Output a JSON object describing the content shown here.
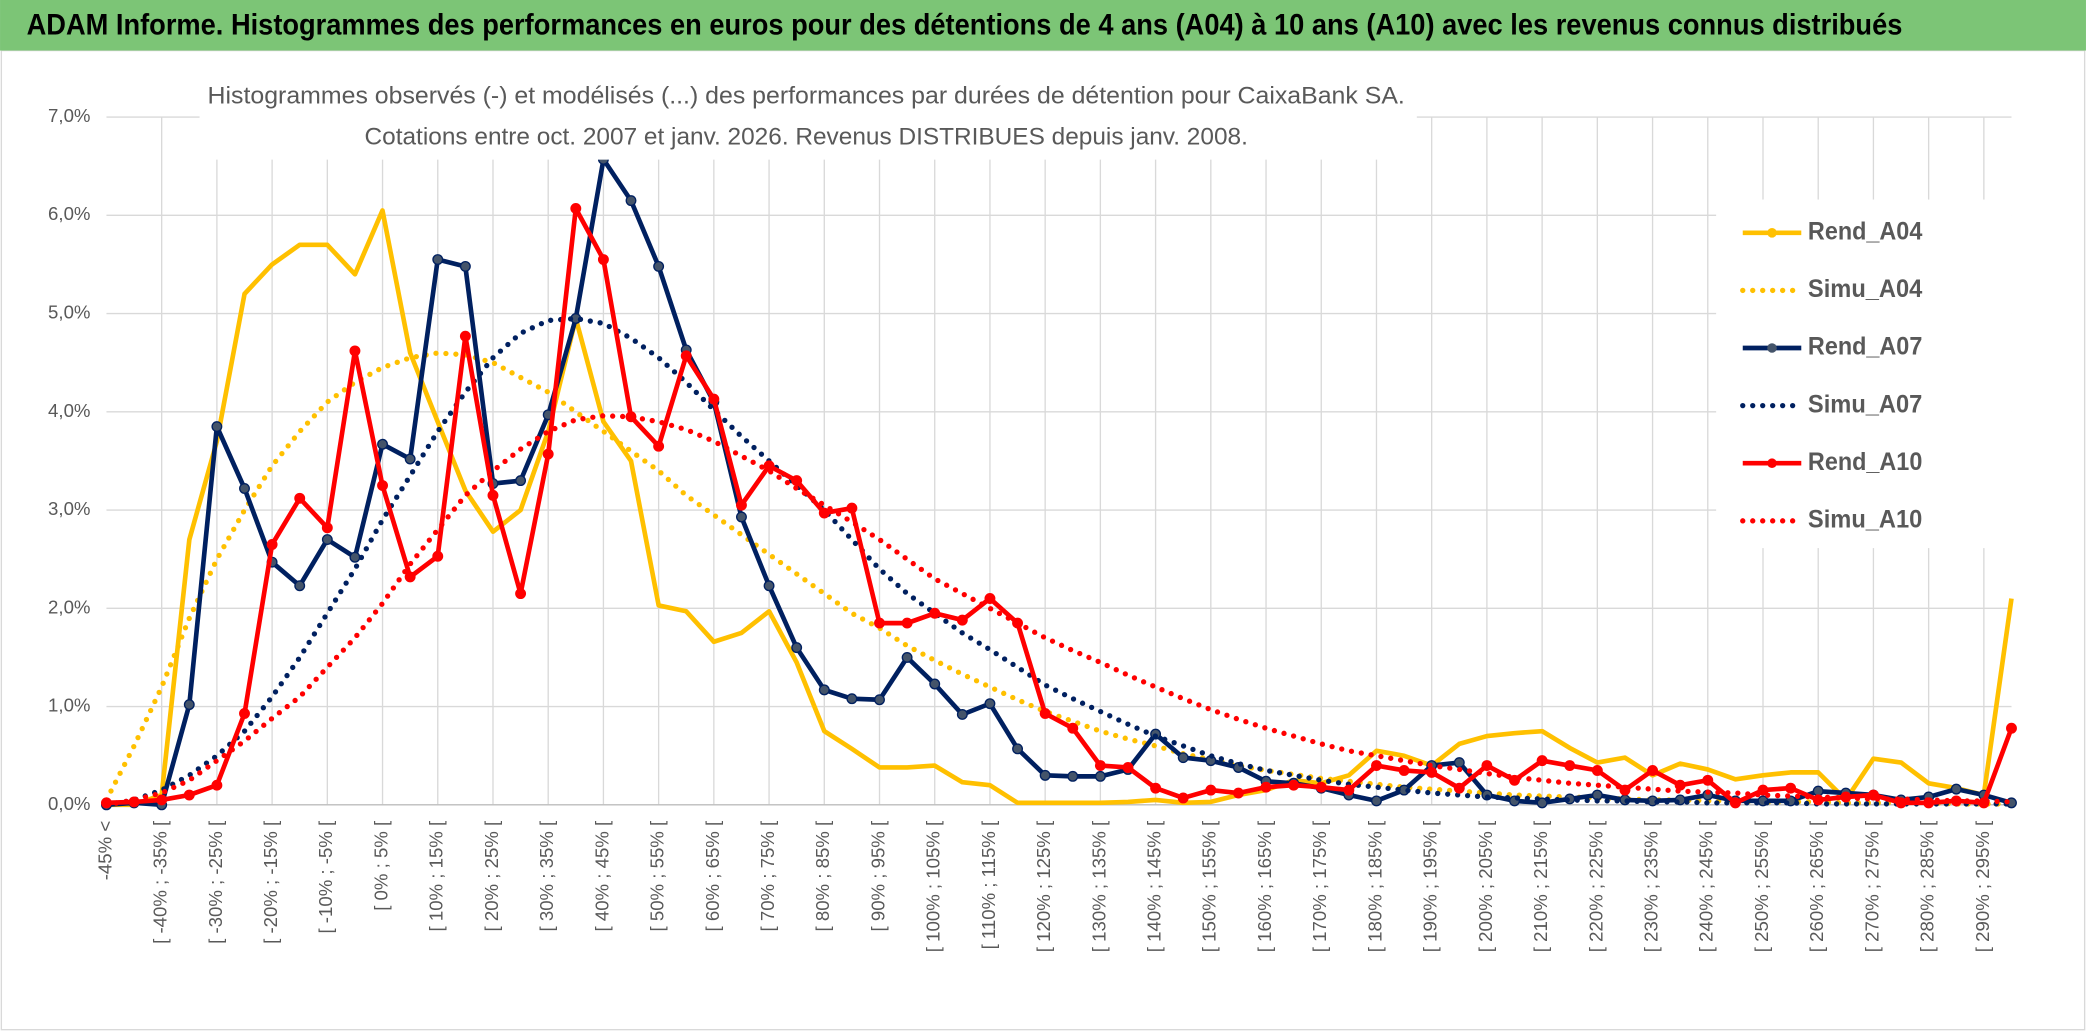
{
  "chart_data": {
    "type": "line",
    "title": "ADAM Informe. Histogrammes des performances en euros pour des détentions de 4 ans (A04) à 10 ans (A10) avec les revenus connus distribués",
    "subtitle": [
      "Histogrammes observés (-) et modélisés (...) des performances par durées de détention pour CaixaBank SA.",
      "Cotations entre oct. 2007 et janv. 2026. Revenus DISTRIBUES depuis janv. 2008."
    ],
    "categories": [
      "-45% <",
      null,
      "[ -40% ; -35% [",
      null,
      "[ -30% ; -25% [",
      null,
      "[ -20% ; -15% [",
      null,
      "[ -10% ; -5% [",
      null,
      "[ 0% ; 5% [",
      null,
      "[ 10% ; 15% [",
      null,
      "[ 20% ; 25% [",
      null,
      "[ 30% ; 35% [",
      null,
      "[ 40% ; 45% [",
      null,
      "[ 50% ; 55% [",
      null,
      "[ 60% ; 65% [",
      null,
      "[ 70% ; 75% [",
      null,
      "[ 80% ; 85% [",
      null,
      "[ 90% ; 95% [",
      null,
      "[ 100% ; 105% [",
      null,
      "[ 110% ; 115% [",
      null,
      "[ 120% ; 125% [",
      null,
      "[ 130% ; 135% [",
      null,
      "[ 140% ; 145% [",
      null,
      "[ 150% ; 155% [",
      null,
      "[ 160% ; 165% [",
      null,
      "[ 170% ; 175% [",
      null,
      "[ 180% ; 185% [",
      null,
      "[ 190% ; 195% [",
      null,
      "[ 200% ; 205% [",
      null,
      "[ 210% ; 215% [",
      null,
      "[ 220% ; 225% [",
      null,
      "[ 230% ; 235% [",
      null,
      "[ 240% ; 245% [",
      null,
      "[ 250% ; 255% [",
      null,
      "[ 260% ; 265% [",
      null,
      "[ 270% ; 275% [",
      null,
      "[ 280% ; 285% [",
      null,
      "[ 290% ; 295% [",
      null
    ],
    "series": [
      {
        "name": "Rend_A04",
        "color": "#ffc000",
        "style": "solid",
        "markers": false,
        "values": [
          0,
          0,
          0.1,
          2.7,
          3.7,
          5.2,
          5.5,
          5.7,
          5.7,
          5.4,
          6.05,
          4.6,
          3.9,
          3.2,
          2.78,
          3.0,
          3.8,
          4.95,
          3.9,
          3.5,
          2.03,
          1.97,
          1.66,
          1.75,
          1.97,
          1.45,
          0.75,
          0.57,
          0.38,
          0.38,
          0.4,
          0.23,
          0.2,
          0.02,
          0.02,
          0.02,
          0.02,
          0.03,
          0.05,
          0.02,
          0.03,
          0.1,
          0.15,
          0.25,
          0.22,
          0.3,
          0.55,
          0.5,
          0.4,
          0.62,
          0.7,
          0.73,
          0.75,
          0.58,
          0.43,
          0.48,
          0.3,
          0.42,
          0.36,
          0.26,
          0.3,
          0.33,
          0.33,
          0.05,
          0.47,
          0.43,
          0.22,
          0.17,
          0.1,
          2.1
        ]
      },
      {
        "name": "Simu_A04",
        "color": "#ffc000",
        "style": "dotted",
        "markers": false,
        "values": [
          0.05,
          0.6,
          1.2,
          1.9,
          2.5,
          3.0,
          3.45,
          3.8,
          4.1,
          4.3,
          4.45,
          4.55,
          4.6,
          4.58,
          4.5,
          4.35,
          4.2,
          4.0,
          3.8,
          3.6,
          3.4,
          3.15,
          2.95,
          2.75,
          2.55,
          2.35,
          2.15,
          1.95,
          1.8,
          1.62,
          1.47,
          1.33,
          1.2,
          1.07,
          0.95,
          0.85,
          0.75,
          0.67,
          0.6,
          0.52,
          0.46,
          0.4,
          0.35,
          0.31,
          0.27,
          0.24,
          0.21,
          0.18,
          0.16,
          0.14,
          0.12,
          0.1,
          0.09,
          0.08,
          0.07,
          0.06,
          0.05,
          0.05,
          0.04,
          0.04,
          0.03,
          0.03,
          0.03,
          0.02,
          0.02,
          0.02,
          0.02,
          0.01,
          0.01,
          0.01
        ]
      },
      {
        "name": "Rend_A07",
        "color": "#002060",
        "style": "solid",
        "markers": true,
        "values": [
          0,
          0.02,
          0,
          1.02,
          3.85,
          3.22,
          2.47,
          2.23,
          2.7,
          2.52,
          3.67,
          3.52,
          5.55,
          5.48,
          3.27,
          3.3,
          3.97,
          4.95,
          6.57,
          6.15,
          5.48,
          4.63,
          4.1,
          2.93,
          2.23,
          1.6,
          1.17,
          1.08,
          1.07,
          1.5,
          1.23,
          0.92,
          1.03,
          0.57,
          0.3,
          0.29,
          0.29,
          0.36,
          0.72,
          0.48,
          0.45,
          0.38,
          0.24,
          0.22,
          0.17,
          0.1,
          0.04,
          0.15,
          0.4,
          0.43,
          0.1,
          0.04,
          0.02,
          0.06,
          0.1,
          0.05,
          0.04,
          0.05,
          0.1,
          0.04,
          0.04,
          0.04,
          0.14,
          0.12,
          0.1,
          0.05,
          0.08,
          0.16,
          0.1,
          0.02
        ]
      },
      {
        "name": "Simu_A07",
        "color": "#002060",
        "style": "dotted",
        "markers": false,
        "values": [
          0,
          0.05,
          0.15,
          0.3,
          0.5,
          0.75,
          1.1,
          1.5,
          1.95,
          2.4,
          2.9,
          3.35,
          3.8,
          4.2,
          4.55,
          4.8,
          4.93,
          4.95,
          4.9,
          4.75,
          4.55,
          4.3,
          4.02,
          3.75,
          3.5,
          3.25,
          3.0,
          2.7,
          2.4,
          2.15,
          1.95,
          1.75,
          1.58,
          1.4,
          1.22,
          1.08,
          0.95,
          0.82,
          0.7,
          0.6,
          0.5,
          0.42,
          0.35,
          0.3,
          0.25,
          0.21,
          0.18,
          0.15,
          0.12,
          0.1,
          0.08,
          0.07,
          0.06,
          0.05,
          0.04,
          0.04,
          0.03,
          0.03,
          0.02,
          0.02,
          0.02,
          0.02,
          0.01,
          0.01,
          0.01,
          0.01,
          0.01,
          0.01,
          0.01,
          0.01
        ]
      },
      {
        "name": "Rend_A10",
        "color": "#ff0000",
        "style": "solid",
        "markers": true,
        "values": [
          0.02,
          0.03,
          0.05,
          0.1,
          0.2,
          0.93,
          2.65,
          3.12,
          2.82,
          4.62,
          3.25,
          2.32,
          2.53,
          4.77,
          3.15,
          2.15,
          3.57,
          6.07,
          5.55,
          3.95,
          3.65,
          4.57,
          4.13,
          3.05,
          3.45,
          3.3,
          2.97,
          3.02,
          1.85,
          1.85,
          1.95,
          1.88,
          2.1,
          1.85,
          0.93,
          0.78,
          0.4,
          0.38,
          0.17,
          0.07,
          0.15,
          0.12,
          0.18,
          0.2,
          0.18,
          0.15,
          0.4,
          0.35,
          0.33,
          0.17,
          0.4,
          0.25,
          0.45,
          0.4,
          0.35,
          0.15,
          0.35,
          0.2,
          0.25,
          0.02,
          0.15,
          0.17,
          0.05,
          0.08,
          0.1,
          0.02,
          0.02,
          0.04,
          0.02,
          0.78
        ]
      },
      {
        "name": "Simu_A10",
        "color": "#ff0000",
        "style": "dotted",
        "markers": false,
        "values": [
          0,
          0.05,
          0.12,
          0.25,
          0.45,
          0.65,
          0.88,
          1.1,
          1.4,
          1.7,
          2.05,
          2.45,
          2.8,
          3.15,
          3.4,
          3.62,
          3.8,
          3.92,
          3.96,
          3.95,
          3.9,
          3.82,
          3.7,
          3.55,
          3.4,
          3.22,
          3.05,
          2.88,
          2.7,
          2.5,
          2.3,
          2.15,
          2.0,
          1.85,
          1.7,
          1.57,
          1.45,
          1.32,
          1.2,
          1.08,
          0.97,
          0.87,
          0.78,
          0.7,
          0.62,
          0.55,
          0.5,
          0.45,
          0.4,
          0.36,
          0.32,
          0.28,
          0.25,
          0.22,
          0.2,
          0.18,
          0.16,
          0.14,
          0.13,
          0.12,
          0.1,
          0.09,
          0.08,
          0.07,
          0.06,
          0.06,
          0.05,
          0.04,
          0.04,
          0.03
        ]
      }
    ],
    "ylim": [
      0,
      7
    ],
    "yticks": [
      {
        "value": 0,
        "label": "0,0%"
      },
      {
        "value": 1,
        "label": "1,0%"
      },
      {
        "value": 2,
        "label": "2,0%"
      },
      {
        "value": 3,
        "label": "3,0%"
      },
      {
        "value": 4,
        "label": "4,0%"
      },
      {
        "value": 5,
        "label": "5,0%"
      },
      {
        "value": 6,
        "label": "6,0%"
      },
      {
        "value": 7,
        "label": "7,0%"
      }
    ],
    "grid": true,
    "legend": "right"
  }
}
